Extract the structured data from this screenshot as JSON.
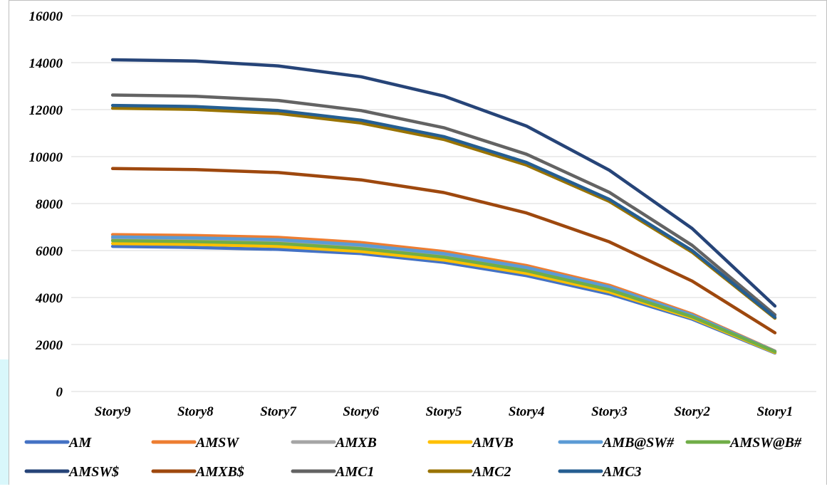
{
  "chart_data": {
    "type": "line",
    "title": "",
    "xlabel": "",
    "ylabel": "",
    "ylim": [
      0,
      16000
    ],
    "yticks": [
      0,
      2000,
      4000,
      6000,
      8000,
      10000,
      12000,
      14000,
      16000
    ],
    "grid": true,
    "legend_position": "bottom",
    "categories": [
      "Story9",
      "Story8",
      "Story7",
      "Story6",
      "Story5",
      "Story4",
      "Story3",
      "Story2",
      "Story1"
    ],
    "series": [
      {
        "name": "AM",
        "color": "#4472c4",
        "values": [
          6180,
          6130,
          6050,
          5870,
          5500,
          4930,
          4150,
          3080,
          1640
        ]
      },
      {
        "name": "AMSW",
        "color": "#ed7d31",
        "values": [
          6680,
          6640,
          6560,
          6340,
          5960,
          5360,
          4520,
          3300,
          1720
        ]
      },
      {
        "name": "AMXB",
        "color": "#a5a5a5",
        "values": [
          6500,
          6470,
          6380,
          6170,
          5800,
          5210,
          4380,
          3210,
          1700
        ]
      },
      {
        "name": "AMVB",
        "color": "#ffc000",
        "values": [
          6300,
          6260,
          6180,
          5960,
          5600,
          5030,
          4240,
          3130,
          1660
        ]
      },
      {
        "name": "AMB@SW#",
        "color": "#5b9bd5",
        "values": [
          6580,
          6540,
          6460,
          6240,
          5870,
          5280,
          4450,
          3250,
          1710
        ]
      },
      {
        "name": "AMSW@B#",
        "color": "#70ad47",
        "values": [
          6420,
          6380,
          6300,
          6080,
          5720,
          5140,
          4330,
          3180,
          1690
        ]
      },
      {
        "name": "AMSW$",
        "color": "#264478",
        "values": [
          14120,
          14070,
          13860,
          13400,
          12580,
          11300,
          9420,
          6940,
          3640
        ]
      },
      {
        "name": "AMXB$",
        "color": "#9e480e",
        "values": [
          9490,
          9450,
          9320,
          9010,
          8470,
          7600,
          6370,
          4700,
          2500
        ]
      },
      {
        "name": "AMC1",
        "color": "#636363",
        "values": [
          12620,
          12570,
          12390,
          11960,
          11230,
          10100,
          8480,
          6220,
          3260
        ]
      },
      {
        "name": "AMC2",
        "color": "#997300",
        "values": [
          12060,
          12010,
          11840,
          11430,
          10730,
          9640,
          8090,
          5930,
          3120
        ]
      },
      {
        "name": "AMC3",
        "color": "#255e91",
        "values": [
          12180,
          12130,
          11960,
          11550,
          10850,
          9750,
          8180,
          6000,
          3160
        ]
      }
    ]
  }
}
